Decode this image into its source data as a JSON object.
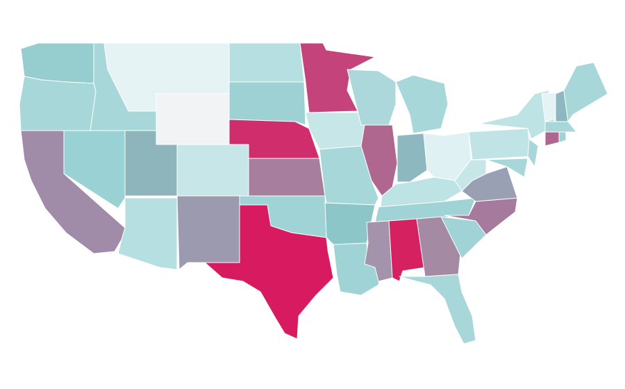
{
  "map": {
    "regions": [
      {
        "color": "#96cdce"
      },
      {
        "color": "#a8d7d9"
      },
      {
        "color": "#a08ba8"
      },
      {
        "color": "#a8d7d9"
      },
      {
        "color": "#9ad1d4"
      },
      {
        "color": "#e5f3f5"
      },
      {
        "color": "#f2f3f5"
      },
      {
        "color": "#8db5bb"
      },
      {
        "color": "#b6dfe1"
      },
      {
        "color": "#c6e6e8"
      },
      {
        "color": "#9b9aae"
      },
      {
        "color": "#b6dfe1"
      },
      {
        "color": "#9ed1d4"
      },
      {
        "color": "#cf2d6c"
      },
      {
        "color": "#a87e9e"
      },
      {
        "color": "#9fd3d5"
      },
      {
        "color": "#d81b60"
      },
      {
        "color": "#c4437a"
      },
      {
        "color": "#c6e6e8"
      },
      {
        "color": "#a8d7d9"
      },
      {
        "color": "#8dc6c8"
      },
      {
        "color": "#9fd3d5"
      },
      {
        "color": "#acd8db"
      },
      {
        "color": "#b0678f"
      },
      {
        "color": "#a8d7d9"
      },
      {
        "color": "#8eb8c0"
      },
      {
        "color": "#e0f1f3"
      },
      {
        "color": "#bde3e5"
      },
      {
        "color": "#9fd3d5"
      },
      {
        "color": "#a394ab"
      },
      {
        "color": "#d62160"
      },
      {
        "color": "#a58aa4"
      },
      {
        "color": "#a8d7d9"
      },
      {
        "color": "#9fd3d5"
      },
      {
        "color": "#a57a9c"
      },
      {
        "color": "#9aa0b4"
      },
      {
        "color": "#c6e6e8"
      },
      {
        "color": "#c0e3e5"
      },
      {
        "color": "#bde3e5"
      },
      {
        "color": "#a8d7d9"
      },
      {
        "color": "#a8d7d9"
      },
      {
        "color": "#e5f3f5"
      },
      {
        "color": "#8eb8c0"
      },
      {
        "color": "#a8d7d9"
      },
      {
        "color": "#a8d7d9"
      },
      {
        "color": "#b0678f"
      },
      {
        "color": "#9fd3d5"
      }
    ]
  }
}
